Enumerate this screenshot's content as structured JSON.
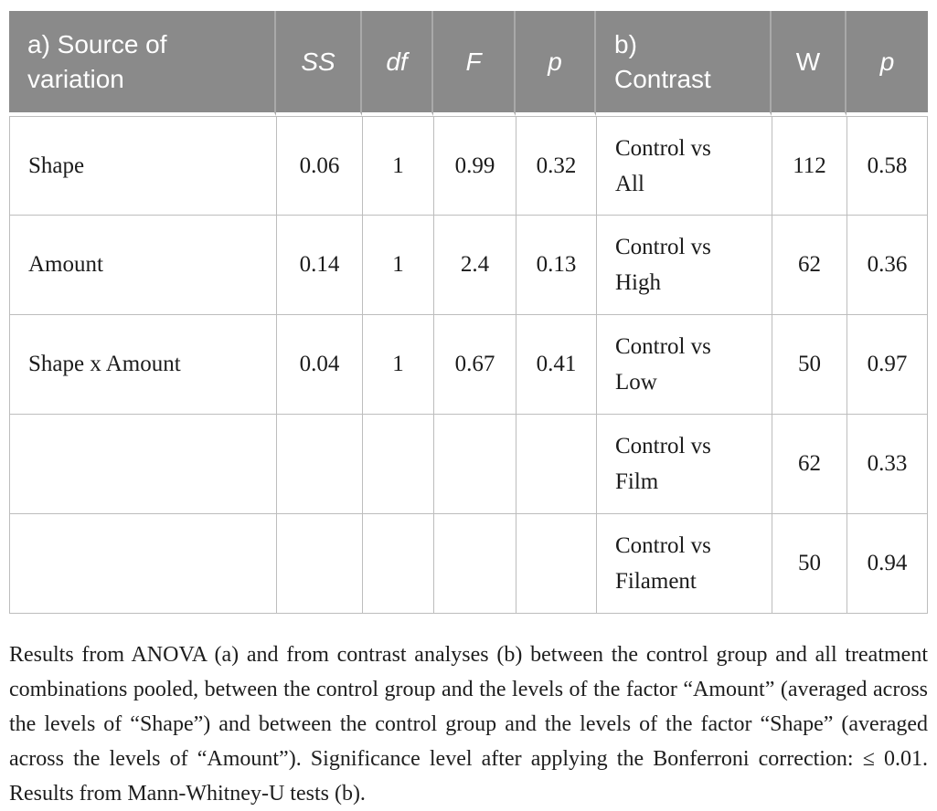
{
  "colors": {
    "header_background": "#8a8a8a",
    "header_text": "#ffffff",
    "header_divider": "#a9a9a9",
    "body_border": "#bdbdbd",
    "body_text": "#1b1b1b"
  },
  "table": {
    "header": {
      "source_of_variation": "a) Source of\nvariation",
      "ss": "SS",
      "df": "df",
      "f": "F",
      "p_a": "p",
      "contrast": "b)\nContrast",
      "w": "W",
      "p_b": "p"
    },
    "anova_rows": [
      {
        "source": "Shape",
        "ss": "0.06",
        "df": "1",
        "f": "0.99",
        "p": "0.32"
      },
      {
        "source": "Amount",
        "ss": "0.14",
        "df": "1",
        "f": "2.4",
        "p": "0.13"
      },
      {
        "source": "Shape x Amount",
        "ss": "0.04",
        "df": "1",
        "f": "0.67",
        "p": "0.41"
      }
    ],
    "contrast_rows": [
      {
        "contrast": "Control vs\nAll",
        "w": "112",
        "p": "0.58"
      },
      {
        "contrast": "Control vs\nHigh",
        "w": "62",
        "p": "0.36"
      },
      {
        "contrast": "Control vs\nLow",
        "w": "50",
        "p": "0.97"
      },
      {
        "contrast": "Control vs\nFilm",
        "w": "62",
        "p": "0.33"
      },
      {
        "contrast": "Control vs\nFilament",
        "w": "50",
        "p": "0.94"
      }
    ]
  },
  "caption": "Results from ANOVA (a) and from contrast analyses (b) between the control group and all treatment combinations pooled, between the control group and the levels of the factor “Amount” (averaged across the levels of “Shape”) and between the control group and the levels of the factor “Shape” (averaged across the levels of “Amount”). Significance level after applying the Bonferroni correction: ≤ 0.01. Results from Mann-Whitney-U tests (b)."
}
